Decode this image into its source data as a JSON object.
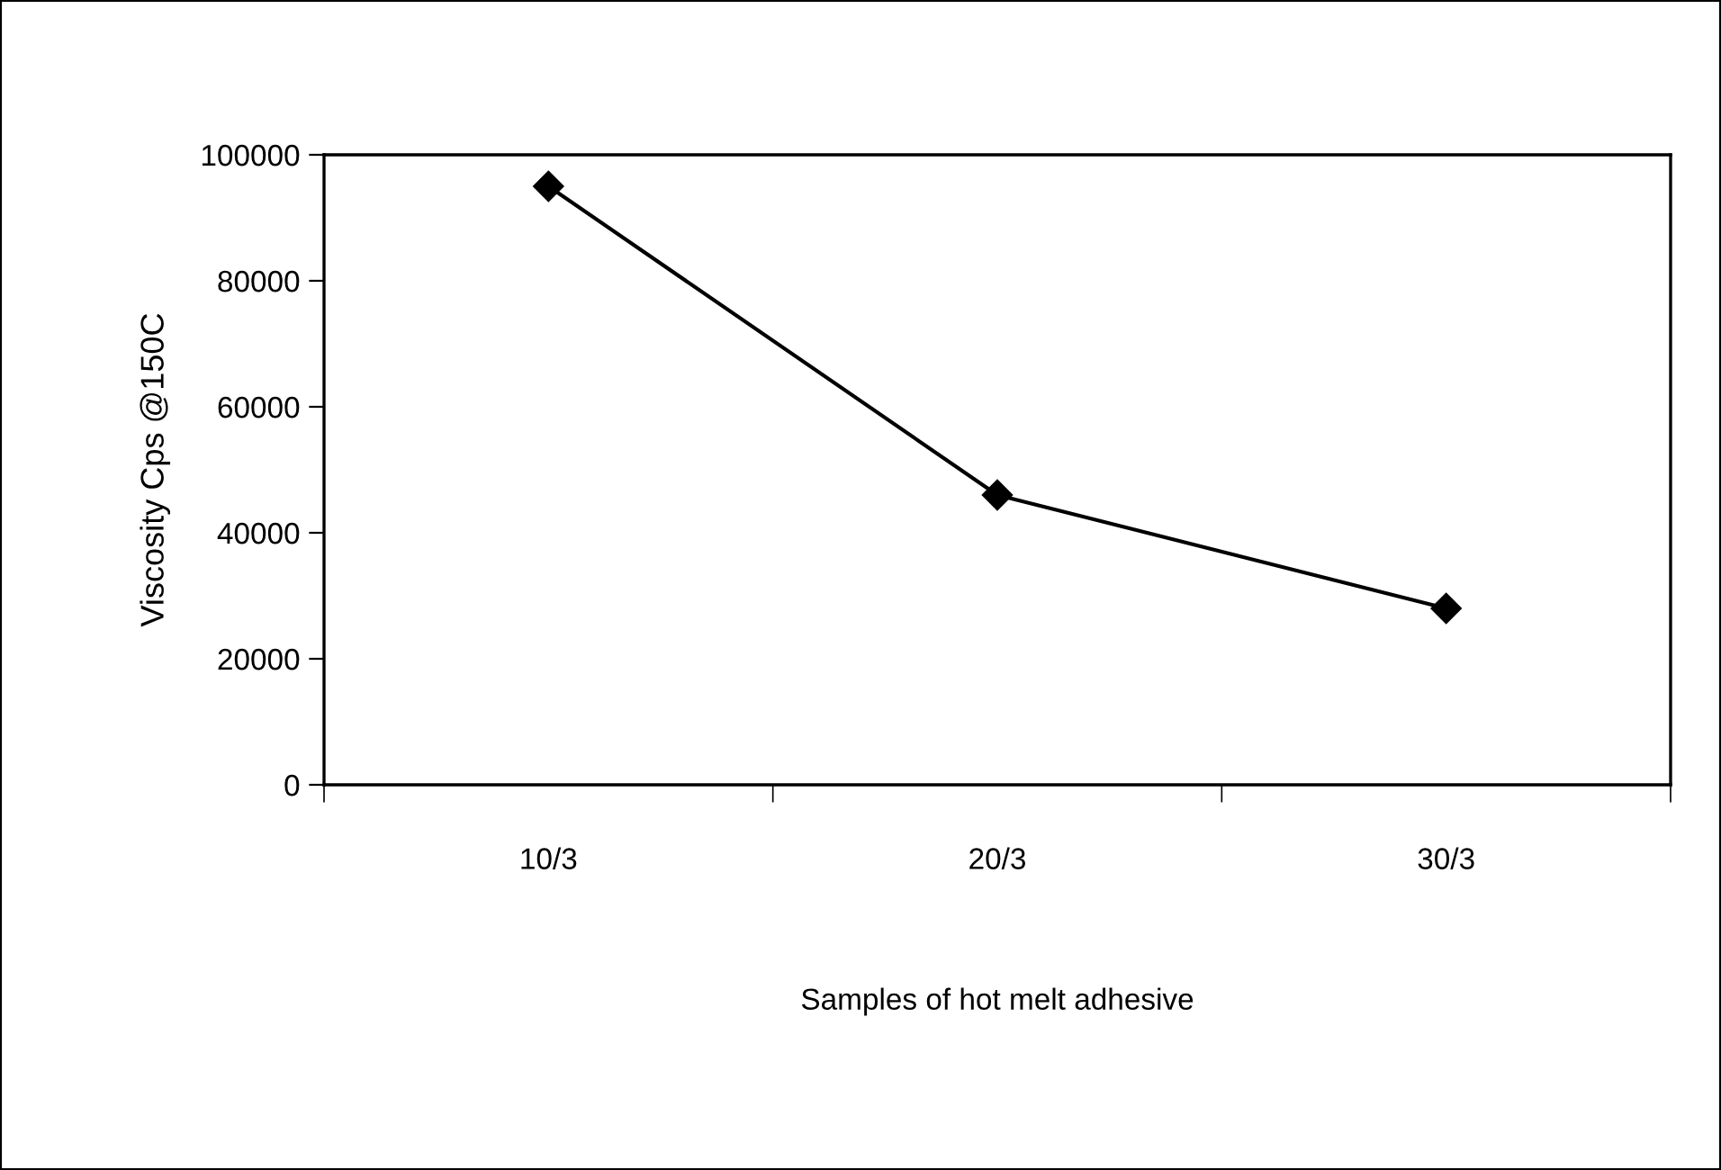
{
  "chart_data": {
    "type": "line",
    "xlabel": "Samples of hot melt adhesive",
    "ylabel": "Viscosity Cps @150C",
    "categories": [
      "10/3",
      "20/3",
      "30/3"
    ],
    "series": [
      {
        "color": "#000000",
        "values": [
          95000,
          46000,
          28000
        ]
      }
    ],
    "ylim": [
      0,
      100000
    ],
    "yticks": [
      0,
      20000,
      40000,
      60000,
      80000,
      100000
    ],
    "grid": false,
    "legend": false,
    "marker": "diamond",
    "line_style": "solid"
  }
}
